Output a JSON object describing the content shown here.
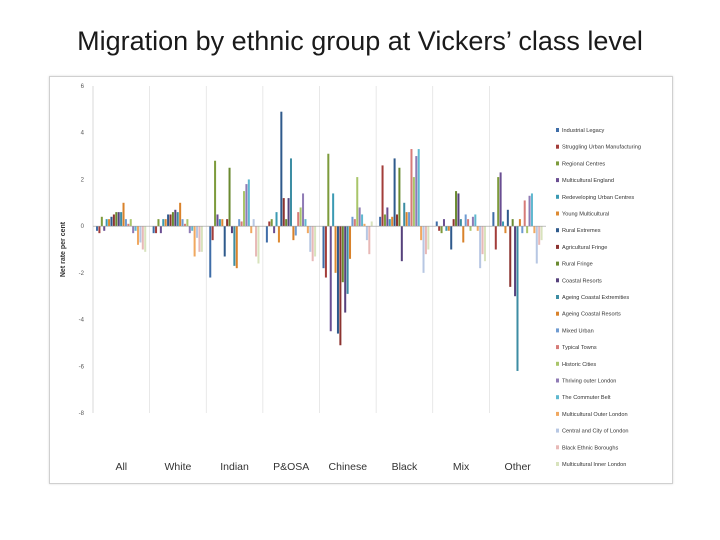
{
  "slide": {
    "title": "Migration by ethnic group at Vickers’ class level"
  },
  "chart_data": {
    "type": "bar",
    "ylabel": "Net rate per cent",
    "ylim": [
      -8,
      6
    ],
    "yticks": [
      6,
      4,
      2,
      0,
      -2,
      -4,
      -6,
      -8
    ],
    "legend_position": "right",
    "categories": [
      "All",
      "White",
      "Indian",
      "P&OSA",
      "Chinese",
      "Black",
      "Mix",
      "Other"
    ],
    "series": [
      {
        "name": "Industrial Legacy",
        "color": "#3f6da8",
        "values": [
          -0.2,
          -0.3,
          -2.2,
          -0.7,
          -1.8,
          0.4,
          0.2,
          0.6
        ]
      },
      {
        "name": "Struggling Urban Manufacturing",
        "color": "#a33d3a",
        "values": [
          -0.3,
          -0.3,
          -0.6,
          0.2,
          -2.2,
          2.6,
          -0.2,
          -1.0
        ]
      },
      {
        "name": "Regional Centres",
        "color": "#7d9b3c",
        "values": [
          0.4,
          0.3,
          2.8,
          0.3,
          3.1,
          0.5,
          -0.3,
          2.1
        ]
      },
      {
        "name": "Multicultural England",
        "color": "#6a4e92",
        "values": [
          -0.2,
          -0.3,
          0.5,
          -0.3,
          -4.5,
          0.8,
          0.3,
          2.3
        ]
      },
      {
        "name": "Redeveloping Urban Centres",
        "color": "#3b9ab3",
        "values": [
          0.3,
          0.3,
          0.3,
          0.6,
          1.4,
          0.3,
          -0.2,
          0.2
        ]
      },
      {
        "name": "Young Multicultural",
        "color": "#dd8a32",
        "values": [
          0.3,
          0.3,
          0.3,
          -0.7,
          -2.0,
          0.4,
          -0.2,
          -0.3
        ]
      },
      {
        "name": "Rural Extremes",
        "color": "#2f5a8c",
        "values": [
          0.4,
          0.5,
          -1.3,
          4.9,
          -4.6,
          2.9,
          -1.0,
          0.7
        ]
      },
      {
        "name": "Agricultural Fringe",
        "color": "#8c3330",
        "values": [
          0.5,
          0.5,
          0.3,
          1.2,
          -5.1,
          0.5,
          0.3,
          -2.6
        ]
      },
      {
        "name": "Rural Fringe",
        "color": "#6a8a30",
        "values": [
          0.6,
          0.6,
          2.5,
          0.3,
          -2.4,
          2.5,
          1.5,
          0.3
        ]
      },
      {
        "name": "Coastal Resorts",
        "color": "#56417c",
        "values": [
          0.6,
          0.7,
          -0.3,
          1.2,
          -3.7,
          -1.5,
          1.4,
          -3.0
        ]
      },
      {
        "name": "Ageing Coastal Extremities",
        "color": "#3d8da3",
        "values": [
          0.6,
          0.6,
          -1.7,
          2.9,
          -2.9,
          1.0,
          0.3,
          -6.2
        ]
      },
      {
        "name": "Ageing Coastal Resorts",
        "color": "#d9822b",
        "values": [
          1.0,
          1.0,
          -1.8,
          -0.6,
          -1.4,
          0.6,
          -0.7,
          0.3
        ]
      },
      {
        "name": "Mixed Urban",
        "color": "#6f9bd1",
        "values": [
          0.3,
          0.3,
          0.3,
          -0.4,
          0.4,
          0.6,
          0.5,
          -0.3
        ]
      },
      {
        "name": "Typical Towns",
        "color": "#d67b78",
        "values": [
          0.1,
          0.1,
          0.2,
          0.6,
          0.3,
          3.3,
          0.3,
          1.1
        ]
      },
      {
        "name": "Historic Cities",
        "color": "#a9c56a",
        "values": [
          0.3,
          0.3,
          1.5,
          0.8,
          2.1,
          2.1,
          -0.2,
          -0.3
        ]
      },
      {
        "name": "Thriving outer London",
        "color": "#8f7bb5",
        "values": [
          -0.3,
          -0.3,
          1.8,
          1.4,
          0.8,
          3.0,
          0.4,
          1.3
        ]
      },
      {
        "name": "The Commuter Belt",
        "color": "#5fb8cf",
        "values": [
          -0.2,
          -0.2,
          2.0,
          0.3,
          0.5,
          3.3,
          0.5,
          1.4
        ]
      },
      {
        "name": "Multicultural Outer London",
        "color": "#f0a860",
        "values": [
          -0.8,
          -1.3,
          -0.3,
          -0.3,
          0.1,
          -0.6,
          -0.2,
          -0.3
        ]
      },
      {
        "name": "Central and City of London",
        "color": "#b7c7e3",
        "values": [
          -0.7,
          -0.5,
          0.3,
          -1.1,
          -0.6,
          -2.0,
          -1.8,
          -1.6
        ]
      },
      {
        "name": "Black Ethnic Boroughs",
        "color": "#e8b9b7",
        "values": [
          -1.0,
          -1.1,
          -1.3,
          -1.5,
          -1.2,
          -1.2,
          -1.2,
          -0.8
        ]
      },
      {
        "name": "Multicultural Inner London",
        "color": "#d8e3bd",
        "values": [
          -1.1,
          -1.1,
          -1.6,
          -1.3,
          0.2,
          -1.0,
          -1.5,
          -0.6
        ]
      }
    ]
  }
}
